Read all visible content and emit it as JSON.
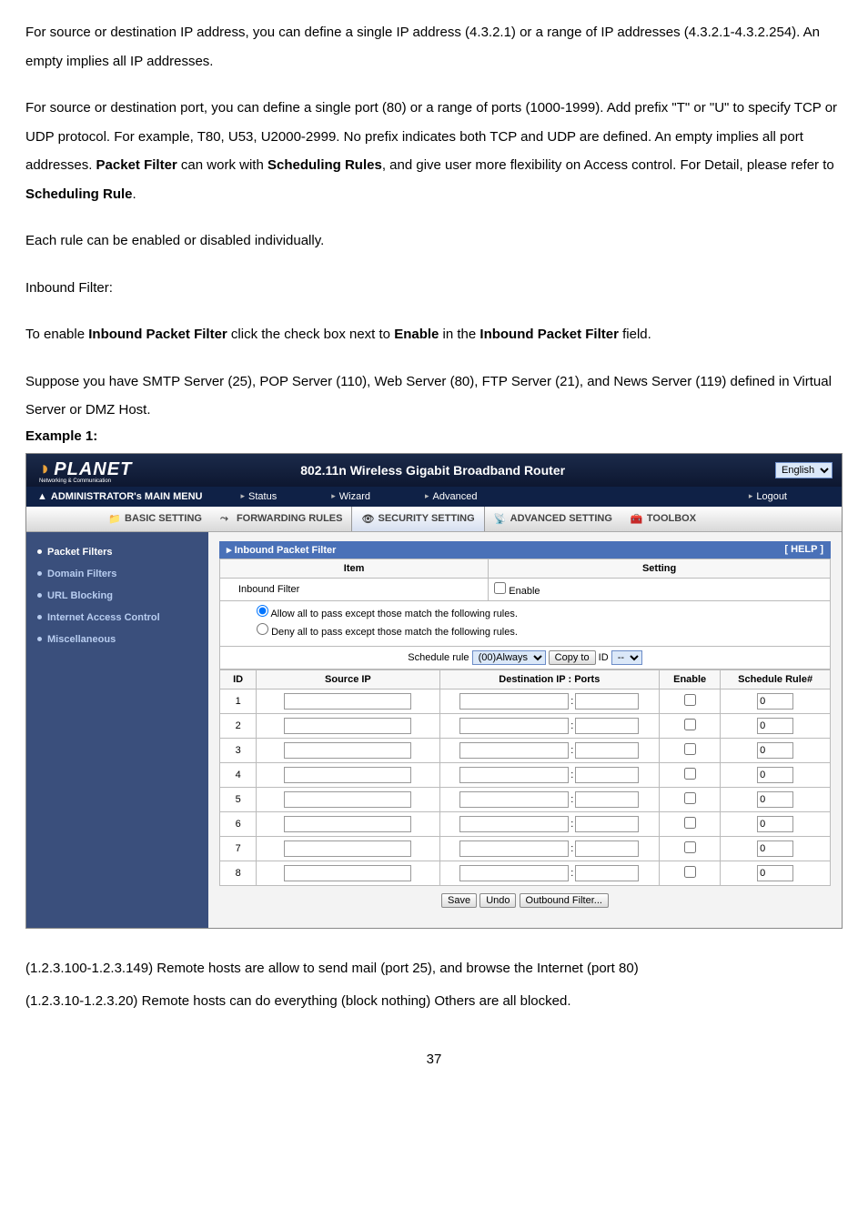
{
  "doc": {
    "p1": "For source or destination IP address, you can define a single IP address (4.3.2.1) or a range of IP addresses (4.3.2.1-4.3.2.254). An empty implies all IP addresses.",
    "p2a": "For source or destination port, you can define a single port (80) or a range of ports (1000-1999). Add prefix \"T\" or \"U\" to specify TCP or UDP protocol. For example, T80, U53, U2000-2999. No prefix indicates both TCP and UDP are defined. An empty implies all port addresses. ",
    "p2b": "Packet Filter",
    "p2c": " can work with ",
    "p2d": "Scheduling Rules",
    "p2e": ", and give user more flexibility on Access control. For Detail, please refer to ",
    "p2f": "Scheduling Rule",
    "p2g": ".",
    "p3": "Each rule can be enabled or disabled individually.",
    "p4": "Inbound Filter:",
    "p5a": "To enable ",
    "p5b": "Inbound Packet Filter",
    "p5c": " click the check box next to ",
    "p5d": "Enable",
    "p5e": " in the ",
    "p5f": "Inbound Packet Filter",
    "p5g": " field.",
    "p6": "Suppose you have SMTP Server (25), POP Server (110), Web Server (80), FTP Server (21), and News Server (119) defined in Virtual Server or DMZ Host.",
    "example": "Example 1:",
    "p7": "(1.2.3.100-1.2.3.149) Remote hosts are allow to send mail (port 25), and browse the Internet (port 80)",
    "p8": "(1.2.3.10-1.2.3.20) Remote hosts can do everything (block nothing) Others are all blocked.",
    "pagenum": "37"
  },
  "router": {
    "logo": "PLANET",
    "logo_sub": "Networking & Communication",
    "title": "802.11n Wireless Gigabit Broadband Router",
    "lang": "English",
    "menu1_label": "ADMINISTRATOR's MAIN MENU",
    "menu1": [
      "Status",
      "Wizard",
      "Advanced",
      "Logout"
    ],
    "menu2": [
      "BASIC SETTING",
      "FORWARDING RULES",
      "SECURITY SETTING",
      "ADVANCED SETTING",
      "TOOLBOX"
    ],
    "side": [
      "Packet Filters",
      "Domain Filters",
      "URL Blocking",
      "Internet Access Control",
      "Miscellaneous"
    ],
    "panel_title": "Inbound Packet Filter",
    "help": "[ HELP ]",
    "col_item": "Item",
    "col_setting": "Setting",
    "inbound_label": "Inbound Filter",
    "enable_label": "Enable",
    "radio_allow": "Allow all to pass except those match the following rules.",
    "radio_deny": "Deny all to pass except those match the following rules.",
    "sched_label": "Schedule rule",
    "sched_sel": "(00)Always",
    "copy_btn": "Copy to",
    "id_label": "ID",
    "id_sel": "--",
    "rh_id": "ID",
    "rh_src": "Source IP",
    "rh_dst": "Destination IP : Ports",
    "rh_en": "Enable",
    "rh_sr": "Schedule Rule#",
    "rows": [
      {
        "id": "1",
        "sr": "0"
      },
      {
        "id": "2",
        "sr": "0"
      },
      {
        "id": "3",
        "sr": "0"
      },
      {
        "id": "4",
        "sr": "0"
      },
      {
        "id": "5",
        "sr": "0"
      },
      {
        "id": "6",
        "sr": "0"
      },
      {
        "id": "7",
        "sr": "0"
      },
      {
        "id": "8",
        "sr": "0"
      }
    ],
    "btn_save": "Save",
    "btn_undo": "Undo",
    "btn_out": "Outbound Filter..."
  },
  "colors": {
    "top_grad_a": "#1b2a4a",
    "top_grad_b": "#0d1730",
    "side_bg": "#3a4f7c",
    "panel_head": "#4a71b8",
    "sel_bg": "#dbe8f8",
    "sel_border": "#6b8cc7"
  }
}
